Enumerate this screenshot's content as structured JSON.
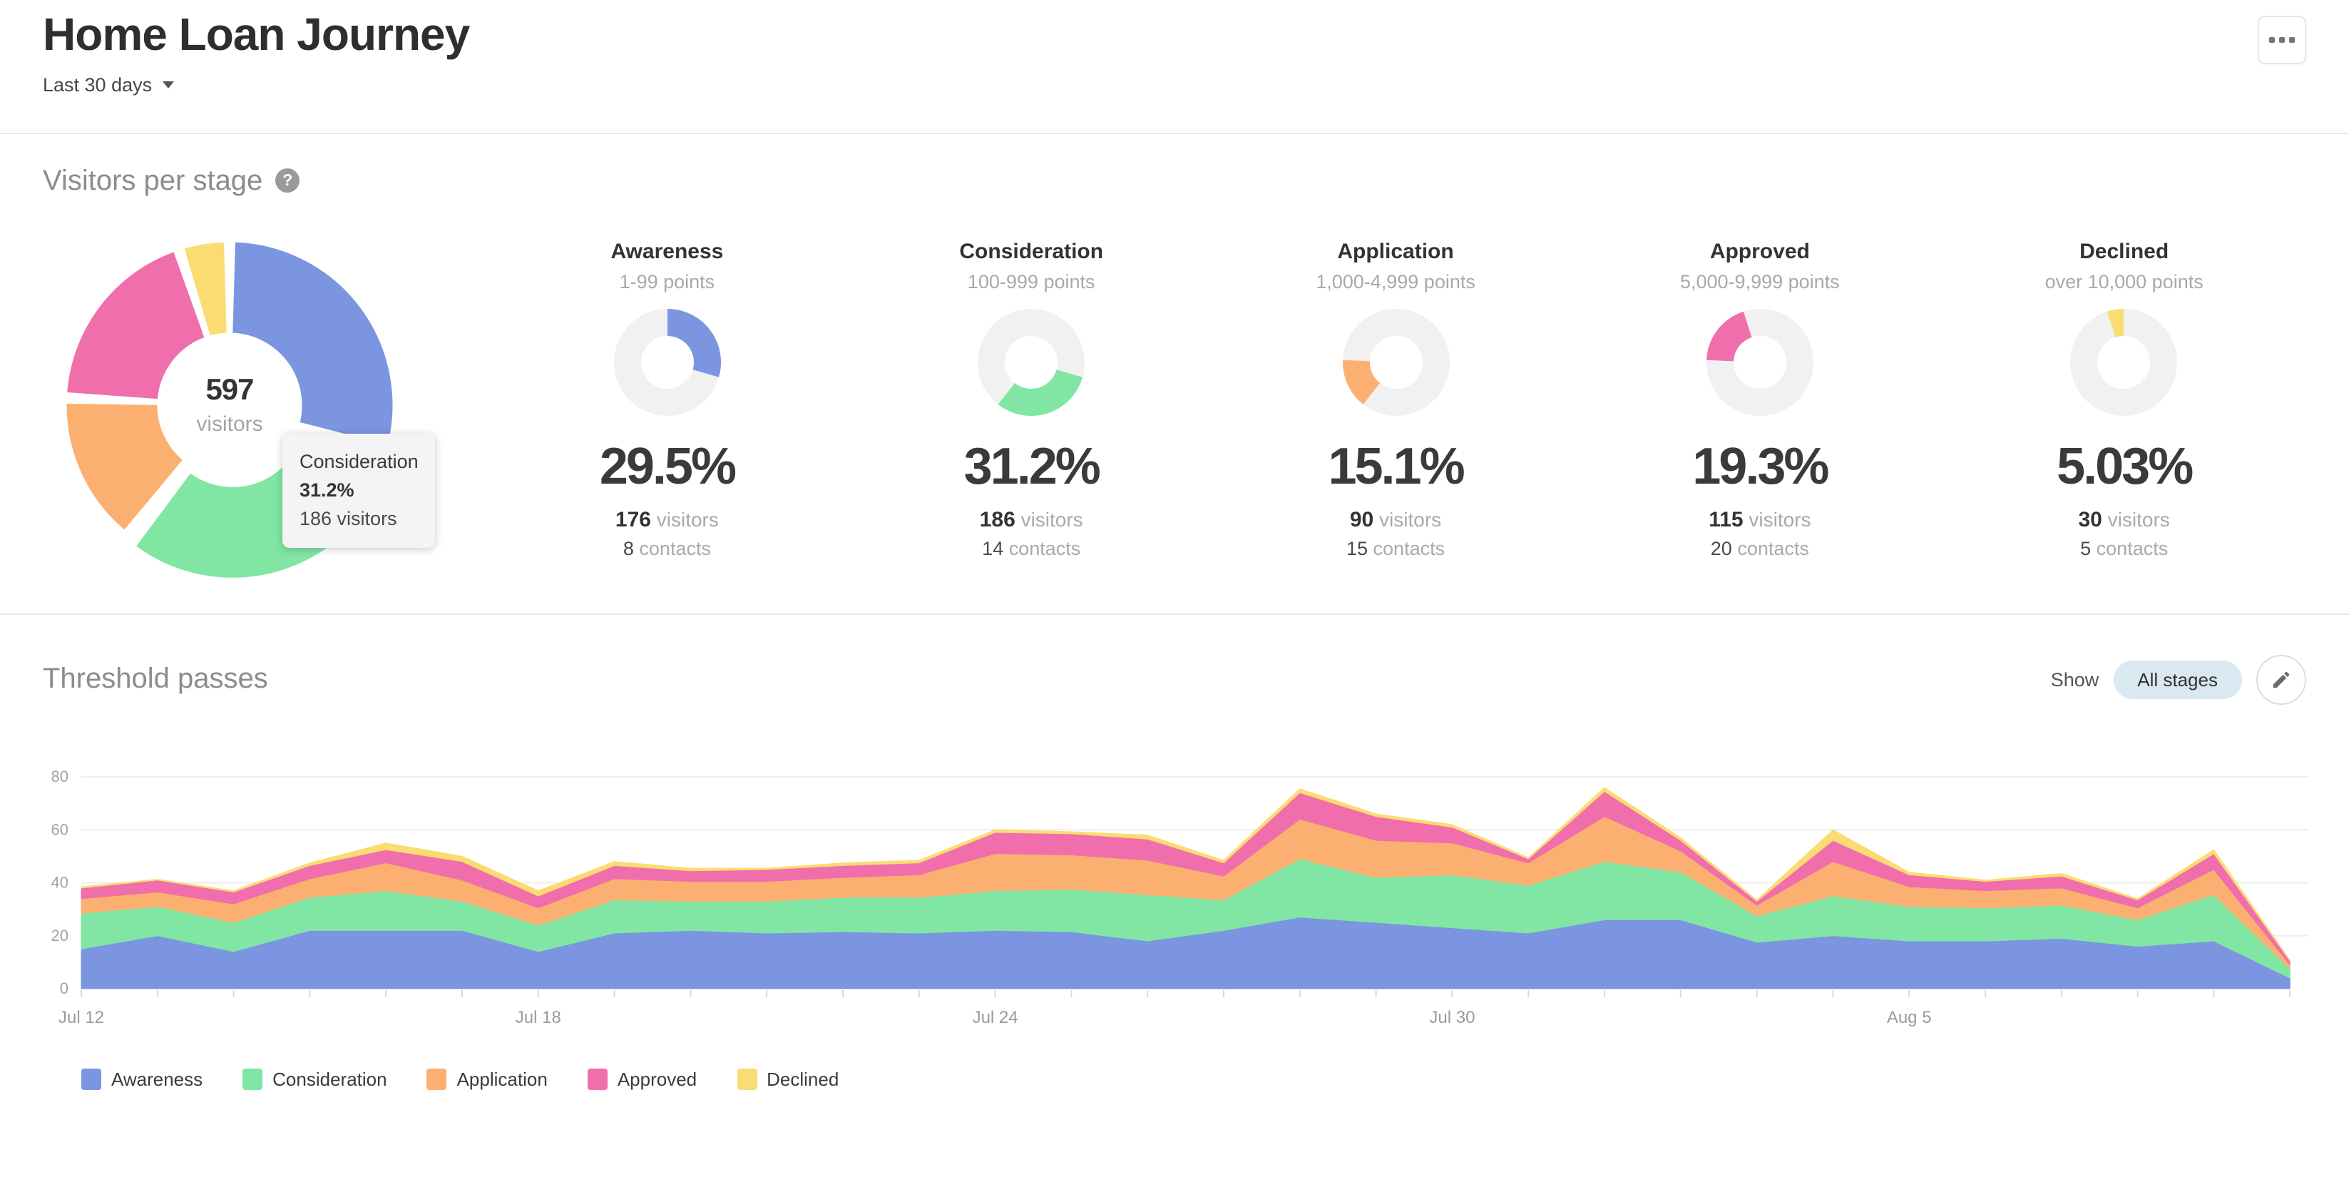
{
  "header": {
    "title": "Home Loan Journey",
    "date_range": "Last 30 days"
  },
  "visitors_section": {
    "heading": "Visitors per stage",
    "help_glyph": "?"
  },
  "donut": {
    "center_value": "597",
    "center_label": "visitors",
    "highlight_segment": "Consideration",
    "tooltip": {
      "stage": "Consideration",
      "percent": "31.2%",
      "visitors": "186 visitors"
    }
  },
  "stages": [
    {
      "name": "Awareness",
      "points": "1-99 points",
      "percent": "29.5%",
      "visitors_value": "176",
      "visitors_label": "visitors",
      "contacts_value": "8",
      "contacts_label": "contacts",
      "pct": 29.5,
      "color": "#7b95e0"
    },
    {
      "name": "Consideration",
      "points": "100-999 points",
      "percent": "31.2%",
      "visitors_value": "186",
      "visitors_label": "visitors",
      "contacts_value": "14",
      "contacts_label": "contacts",
      "pct": 31.2,
      "color": "#81e6a4"
    },
    {
      "name": "Application",
      "points": "1,000-4,999 points",
      "percent": "15.1%",
      "visitors_value": "90",
      "visitors_label": "visitors",
      "contacts_value": "15",
      "contacts_label": "contacts",
      "pct": 15.1,
      "color": "#fbb072"
    },
    {
      "name": "Approved",
      "points": "5,000-9,999 points",
      "percent": "19.3%",
      "visitors_value": "115",
      "visitors_label": "visitors",
      "contacts_value": "20",
      "contacts_label": "contacts",
      "pct": 19.3,
      "color": "#f06eab"
    },
    {
      "name": "Declined",
      "points": "over 10,000 points",
      "percent": "5.03%",
      "visitors_value": "30",
      "visitors_label": "visitors",
      "contacts_value": "5",
      "contacts_label": "contacts",
      "pct": 5.03,
      "color": "#fadc72"
    }
  ],
  "threshold_section": {
    "heading": "Threshold passes",
    "show_label": "Show",
    "filter_value": "All stages"
  },
  "chart_data": {
    "type": "area",
    "stacked": true,
    "grid": "horizontal",
    "legend_position": "bottom",
    "ylim": [
      0,
      80
    ],
    "yticks": [
      0,
      20,
      40,
      60,
      80
    ],
    "x": [
      "Jul 12",
      "Jul 13",
      "Jul 14",
      "Jul 15",
      "Jul 16",
      "Jul 17",
      "Jul 18",
      "Jul 19",
      "Jul 20",
      "Jul 21",
      "Jul 22",
      "Jul 23",
      "Jul 24",
      "Jul 25",
      "Jul 26",
      "Jul 27",
      "Jul 28",
      "Jul 29",
      "Jul 30",
      "Jul 31",
      "Aug 1",
      "Aug 2",
      "Aug 3",
      "Aug 4",
      "Aug 5",
      "Aug 6",
      "Aug 7",
      "Aug 8",
      "Aug 9",
      "Aug 10"
    ],
    "x_axis_labels": [
      {
        "index": 0,
        "label": "Jul 12"
      },
      {
        "index": 6,
        "label": "Jul 18"
      },
      {
        "index": 12,
        "label": "Jul 24"
      },
      {
        "index": 18,
        "label": "Jul 30"
      },
      {
        "index": 24,
        "label": "Aug 5"
      }
    ],
    "series": [
      {
        "name": "Awareness",
        "color": "#7b95e0",
        "values": [
          15,
          20,
          14,
          22,
          22,
          22,
          14,
          21,
          22,
          21,
          21.5,
          21,
          22,
          21.5,
          18,
          22,
          27,
          25,
          23,
          21,
          26,
          26,
          17.5,
          20,
          18,
          18,
          19,
          16,
          18,
          4
        ]
      },
      {
        "name": "Consideration",
        "color": "#81e6a4",
        "values": [
          13.5,
          11,
          11,
          12.5,
          15,
          11,
          10,
          12.5,
          11,
          12,
          13,
          13.5,
          15,
          16,
          17.5,
          11.5,
          22,
          17,
          20,
          18,
          22,
          18,
          10,
          15,
          13,
          12.5,
          12.5,
          10,
          17.5,
          3.5
        ]
      },
      {
        "name": "Application",
        "color": "#fbb072",
        "values": [
          5.5,
          5.5,
          7,
          7,
          10.5,
          8,
          6.5,
          8,
          7.5,
          7.5,
          7.5,
          8.5,
          14,
          13,
          13,
          9,
          15,
          14,
          12,
          8.5,
          17,
          8,
          4,
          13,
          7.5,
          6.5,
          6.5,
          4.5,
          9.5,
          1.5
        ]
      },
      {
        "name": "Approved",
        "color": "#f06eab",
        "values": [
          4,
          4.5,
          4.5,
          5,
          5,
          7,
          4.5,
          5,
          4,
          4.5,
          4.5,
          4.5,
          8,
          8,
          8,
          5,
          10,
          9,
          6,
          1.5,
          9.5,
          4,
          1.5,
          8,
          4.5,
          3.5,
          4.5,
          3,
          6,
          1.5
        ]
      },
      {
        "name": "Declined",
        "color": "#fadc72",
        "values": [
          0.5,
          0.3,
          0.5,
          1,
          2.5,
          2,
          2,
          1.5,
          1,
          0.5,
          1,
          1,
          1,
          0.8,
          1.5,
          1,
          1.5,
          1,
          1,
          0.5,
          1.5,
          1,
          0.5,
          4,
          1,
          0.5,
          1,
          0.5,
          1.5,
          0.3
        ]
      }
    ]
  }
}
